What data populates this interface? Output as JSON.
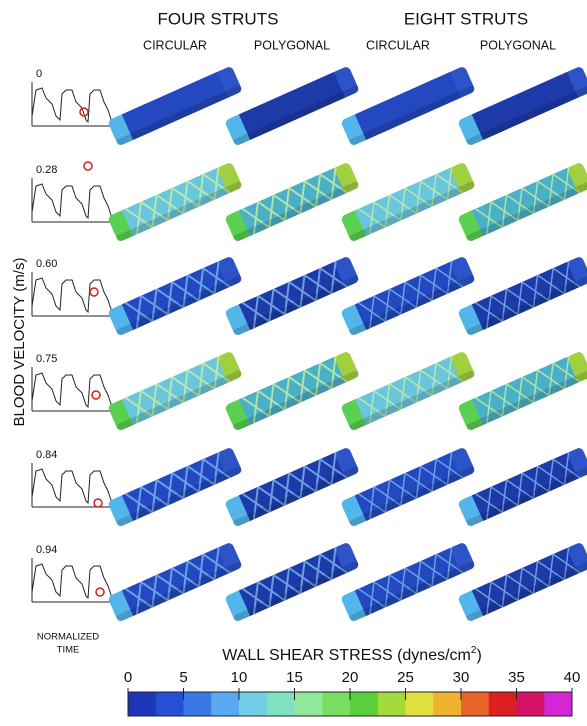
{
  "headers": {
    "four_struts": "FOUR STRUTS",
    "eight_struts": "EIGHT STRUTS",
    "columns": [
      "CIRCULAR",
      "POLYGONAL",
      "CIRCULAR",
      "POLYGONAL"
    ]
  },
  "y_label": "BLOOD VELOCITY (m/s)",
  "rows": [
    "0",
    "0.28",
    "0.60",
    "0.75",
    "0.84",
    "0.94"
  ],
  "x_label": [
    "NORMALIZED",
    "TIME"
  ],
  "colorbar": {
    "title": "WALL SHEAR STRESS (dynes/cm",
    "title_sup": "2",
    "title_end": ")",
    "ticks": [
      0,
      5,
      10,
      15,
      20,
      25,
      30,
      35,
      40
    ]
  }
}
